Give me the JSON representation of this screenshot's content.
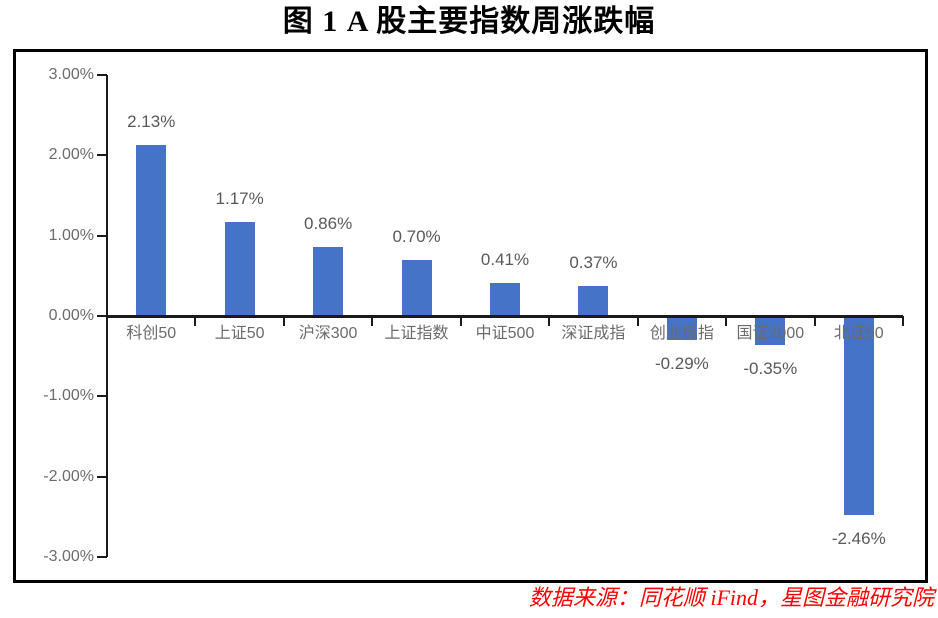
{
  "title": "图 1 A 股主要指数周涨跌幅",
  "source_note": "数据来源：同花顺 iFind，星图金融研究院",
  "colors": {
    "bar": "#4573C8",
    "axis": "#1a1a1a",
    "border": "#000000",
    "data_label": "#595959",
    "axis_label": "#6b6b6b",
    "source_text": "#ff0000"
  },
  "chart_data": {
    "type": "bar",
    "title": "图 1 A 股主要指数周涨跌幅",
    "categories": [
      "科创50",
      "上证50",
      "沪深300",
      "上证指数",
      "中证500",
      "深证成指",
      "创业板指",
      "国证2000",
      "北证50"
    ],
    "values": [
      2.13,
      1.17,
      0.86,
      0.7,
      0.41,
      0.37,
      -0.29,
      -0.35,
      -2.46
    ],
    "value_labels": [
      "2.13%",
      "1.17%",
      "0.86%",
      "0.70%",
      "0.41%",
      "0.37%",
      "-0.29%",
      "-0.35%",
      "-2.46%"
    ],
    "unit": "%",
    "xlabel": "",
    "ylabel": "",
    "ylim": [
      -3,
      3
    ],
    "y_ticks": [
      {
        "value": 3,
        "label": "3.00%"
      },
      {
        "value": 2,
        "label": "2.00%"
      },
      {
        "value": 1,
        "label": "1.00%"
      },
      {
        "value": 0,
        "label": "0.00%"
      },
      {
        "value": -1,
        "label": "-1.00%"
      },
      {
        "value": -2,
        "label": "-2.00%"
      },
      {
        "value": -3,
        "label": "-3.00%"
      }
    ],
    "grid": false,
    "legend": false,
    "bar_color": "#4573C8",
    "data_label_position": "outside-end"
  }
}
